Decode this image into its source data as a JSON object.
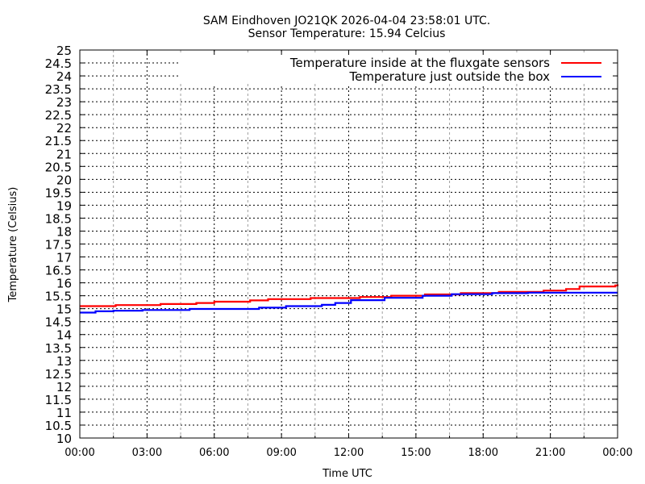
{
  "chart_data": {
    "type": "line",
    "title": "SAM Eindhoven JO21QK 2026-04-04 23:58:01 UTC.",
    "subtitle": "Sensor Temperature: 15.94 Celcius",
    "xlabel": "Time UTC",
    "ylabel": "Temperature (Celsius)",
    "xlim": [
      0,
      24
    ],
    "ylim": [
      10,
      25
    ],
    "x_ticks": [
      0,
      3,
      6,
      9,
      12,
      15,
      18,
      21,
      24
    ],
    "x_tick_labels": [
      "00:00",
      "03:00",
      "06:00",
      "09:00",
      "12:00",
      "15:00",
      "18:00",
      "21:00",
      "00:00"
    ],
    "y_tick_labels": [
      "10",
      "10.5",
      "11",
      "11.5",
      "12",
      "12.5",
      "13",
      "13.5",
      "14",
      "14.5",
      "15",
      "15.5",
      "16",
      "16.5",
      "17",
      "17.5",
      "18",
      "18.5",
      "19",
      "19.5",
      "20",
      "20.5",
      "21",
      "21.5",
      "22",
      "22.5",
      "23",
      "23.5",
      "24",
      "24.5",
      "25"
    ],
    "grid": true,
    "legend_position": "top-right",
    "series": [
      {
        "name": "Temperature inside at the fluxgate sensors",
        "color": "#ff0000",
        "x": [
          0,
          1.6,
          3.6,
          5.2,
          6.0,
          7.6,
          8.4,
          10.3,
          12.5,
          13.9,
          15.4,
          17.0,
          18.7,
          20.7,
          21.7,
          22.3,
          23.9,
          24
        ],
        "y": [
          15.1,
          15.14,
          15.18,
          15.22,
          15.27,
          15.32,
          15.37,
          15.41,
          15.45,
          15.5,
          15.55,
          15.6,
          15.65,
          15.7,
          15.76,
          15.86,
          15.9,
          15.94
        ]
      },
      {
        "name": "Temperature just outside the box",
        "color": "#0000ff",
        "x": [
          0,
          0.7,
          1.5,
          2.8,
          4.9,
          8.0,
          9.2,
          10.8,
          11.4,
          12.1,
          13.6,
          15.3,
          16.6,
          18.4,
          20.0,
          24
        ],
        "y": [
          14.85,
          14.9,
          14.92,
          14.95,
          14.99,
          15.04,
          15.1,
          15.15,
          15.22,
          15.33,
          15.42,
          15.5,
          15.56,
          15.6,
          15.62,
          15.62
        ]
      }
    ]
  }
}
